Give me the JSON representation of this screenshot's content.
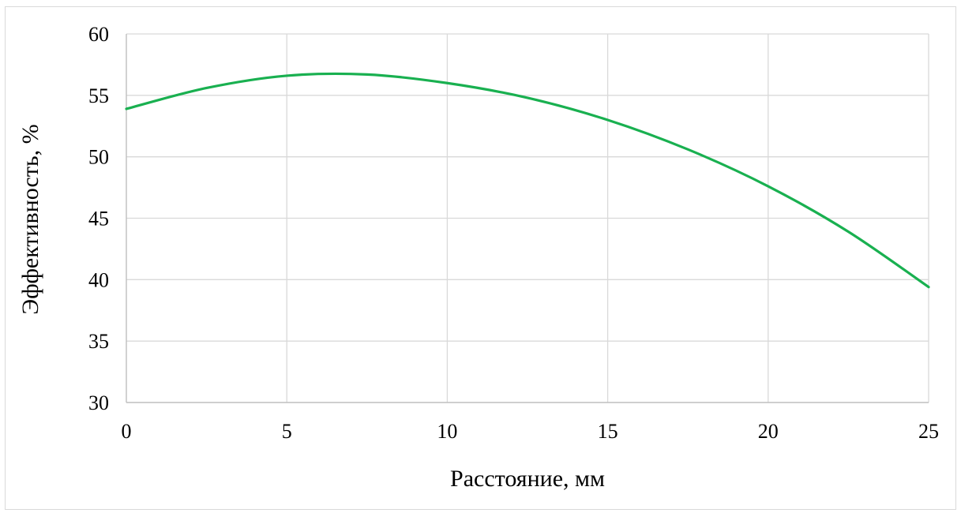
{
  "chart_data": {
    "type": "line",
    "title": "",
    "xlabel": "Расстояние, мм",
    "ylabel": "Эффективность, %",
    "xlim": [
      0,
      25
    ],
    "ylim": [
      30,
      60
    ],
    "x_ticks": [
      "0",
      "5",
      "10",
      "15",
      "20",
      "25"
    ],
    "y_ticks": [
      "30",
      "35",
      "40",
      "45",
      "50",
      "55",
      "60"
    ],
    "grid": true,
    "legend": "none",
    "series": [
      {
        "color": "#19b050",
        "x": [
          0,
          2.5,
          5,
          7.5,
          10,
          12.5,
          15,
          17.5,
          20,
          22.5,
          25
        ],
        "y": [
          53.9,
          55.6,
          56.6,
          56.7,
          56.0,
          54.8,
          53.0,
          50.6,
          47.6,
          43.9,
          39.4
        ]
      }
    ]
  }
}
